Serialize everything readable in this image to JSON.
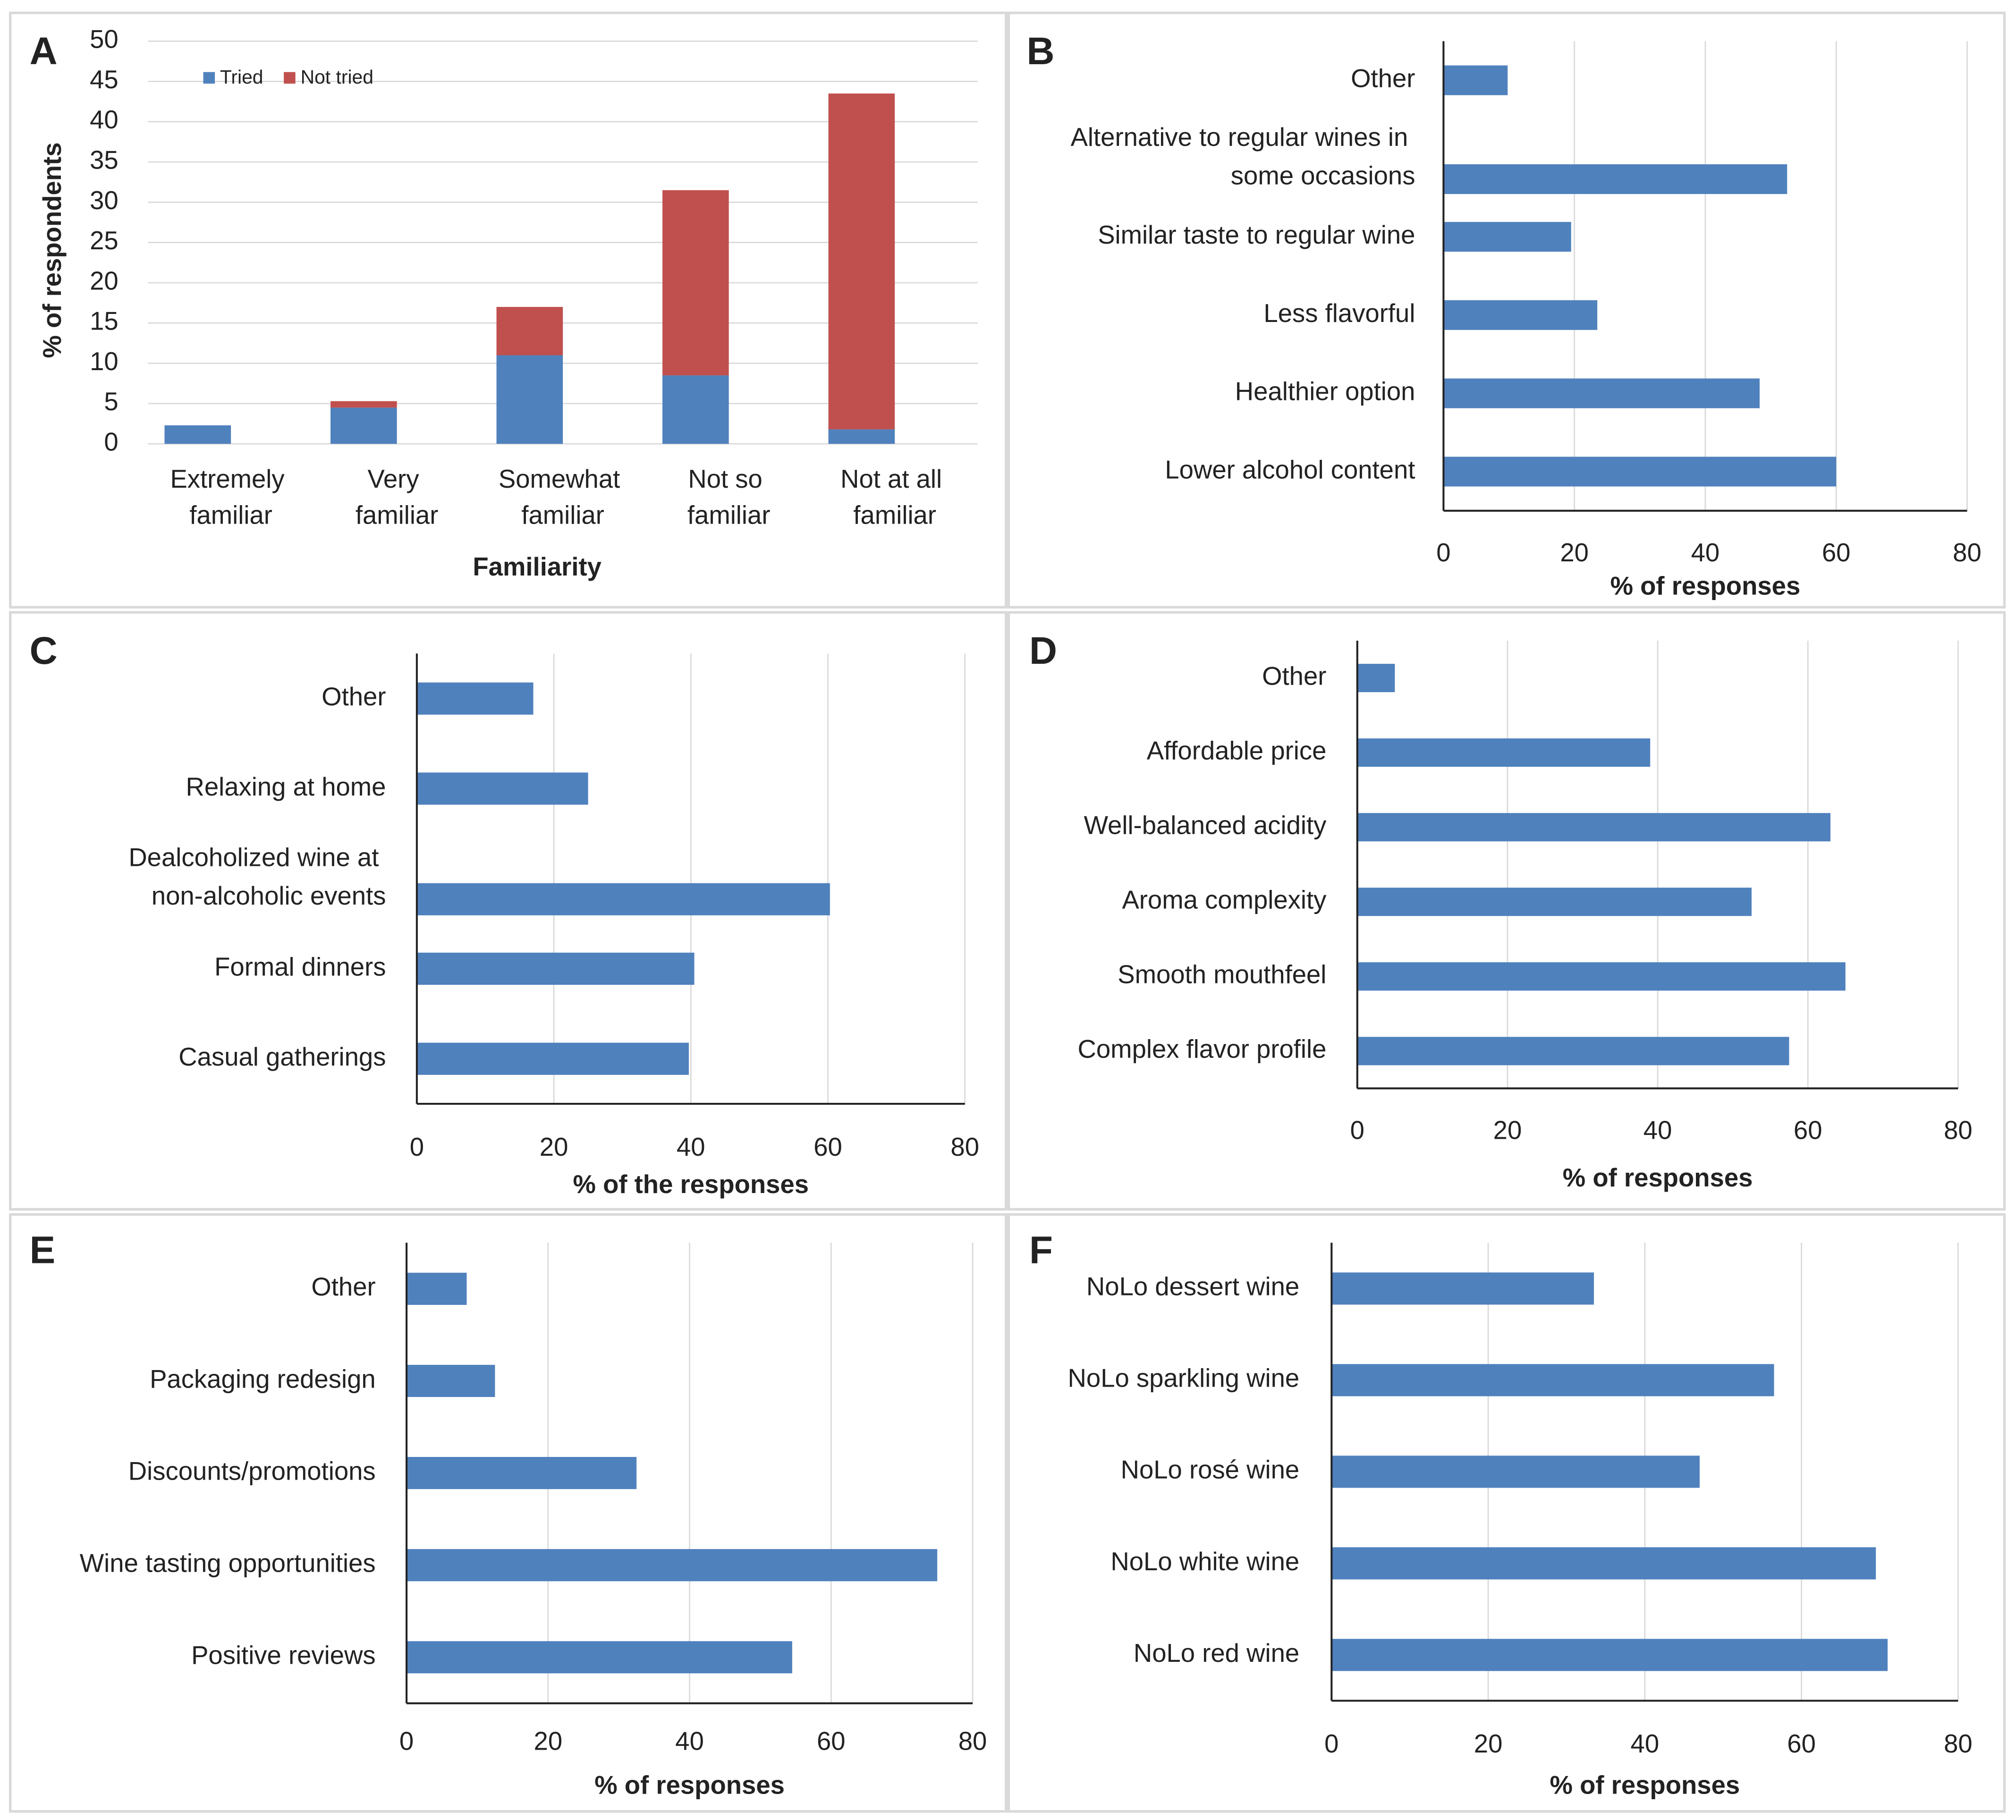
{
  "chart_data": [
    {
      "type": "stacked_bar",
      "label": "A",
      "xlabel": "Familiarity",
      "ylabel": "% of respondents",
      "categories": [
        "Extremely familiar",
        "Very familiar",
        "Somewhat familiar",
        "Not so familiar",
        "Not at all familiar"
      ],
      "series": [
        {
          "name": "Tried",
          "color": "#4f81bd",
          "values": [
            2.3,
            4.5,
            11,
            8.5,
            1.8
          ]
        },
        {
          "name": "Not tried",
          "color": "#c0504d",
          "values": [
            0,
            0.8,
            6,
            23,
            41.7
          ]
        }
      ],
      "ylim": [
        0,
        50
      ],
      "yticks": [
        0,
        5,
        10,
        15,
        20,
        25,
        30,
        35,
        40,
        45,
        50
      ],
      "grid": true,
      "legend": "top-left"
    },
    {
      "type": "hbar",
      "label": "B",
      "xlabel": "% of responses",
      "categories": [
        "Other",
        "Alternative to regular wines in some occasions",
        "Similar taste to regular wine",
        "Less flavorful",
        "Healthier option",
        "Lower alcohol content"
      ],
      "values": [
        9.8,
        52.5,
        19.5,
        23.5,
        48.3,
        60
      ],
      "color": "#4f81bd",
      "xlim": [
        0,
        80
      ],
      "xticks": [
        0,
        20,
        40,
        60,
        80
      ],
      "grid": true
    },
    {
      "type": "hbar",
      "label": "C",
      "xlabel": "% of the responses",
      "categories": [
        "Other",
        "Relaxing at home",
        "Dealcoholized wine at non-alcoholic events",
        "Formal dinners",
        "Casual gatherings"
      ],
      "values": [
        17,
        25,
        60.3,
        40.5,
        39.7
      ],
      "color": "#4f81bd",
      "xlim": [
        0,
        80
      ],
      "xticks": [
        0,
        20,
        40,
        60,
        80
      ],
      "grid": true
    },
    {
      "type": "hbar",
      "label": "D",
      "xlabel": "% of responses",
      "categories": [
        "Other",
        "Affordable price",
        "Well-balanced acidity",
        "Aroma complexity",
        "Smooth mouthfeel",
        "Complex flavor profile"
      ],
      "values": [
        5,
        39,
        63,
        52.5,
        65,
        57.5
      ],
      "color": "#4f81bd",
      "xlim": [
        0,
        80
      ],
      "xticks": [
        0,
        20,
        40,
        60,
        80
      ],
      "grid": true
    },
    {
      "type": "hbar",
      "label": "E",
      "xlabel": "% of responses",
      "categories": [
        "Other",
        "Packaging redesign",
        "Discounts/promotions",
        "Wine tasting opportunities",
        "Positive reviews"
      ],
      "values": [
        8.5,
        12.5,
        32.5,
        75,
        54.5
      ],
      "color": "#4f81bd",
      "xlim": [
        0,
        80
      ],
      "xticks": [
        0,
        20,
        40,
        60,
        80
      ],
      "grid": true
    },
    {
      "type": "hbar",
      "label": "F",
      "xlabel": "% of responses",
      "categories": [
        "NoLo dessert wine",
        "NoLo sparkling wine",
        "NoLo rosé wine",
        "NoLo white wine",
        "NoLo red wine"
      ],
      "values": [
        33.5,
        56.5,
        47,
        69.5,
        71
      ],
      "color": "#4f81bd",
      "xlim": [
        0,
        80
      ],
      "xticks": [
        0,
        20,
        40,
        60,
        80
      ],
      "grid": true
    }
  ]
}
